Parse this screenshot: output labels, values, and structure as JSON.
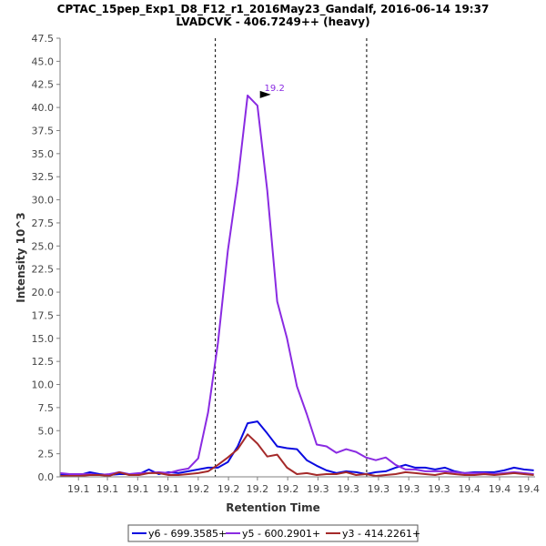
{
  "chart_data": {
    "type": "line",
    "title": "CPTAC_15pep_Exp1_D8_F12_r1_2016May23_Gandalf, 2016-06-14 19:37",
    "subtitle": "LVADCVK - 406.7249++ (heavy)",
    "xlabel": "Retention Time",
    "ylabel": "Intensity 10^3",
    "xlim": [
      19.066,
      19.427
    ],
    "ylim": [
      0,
      47.5
    ],
    "yticks": [
      0,
      2.5,
      5.0,
      7.5,
      10.0,
      12.5,
      15.0,
      17.5,
      20.0,
      22.5,
      25.0,
      27.5,
      30.0,
      32.5,
      35.0,
      37.5,
      40.0,
      42.5,
      45.0,
      47.5
    ],
    "xticks": [
      {
        "value": 19.08,
        "label": "19.1"
      },
      {
        "value": 19.102,
        "label": "19.1"
      },
      {
        "value": 19.125,
        "label": "19.1"
      },
      {
        "value": 19.148,
        "label": "19.1"
      },
      {
        "value": 19.171,
        "label": "19.2"
      },
      {
        "value": 19.194,
        "label": "19.2"
      },
      {
        "value": 19.216,
        "label": "19.2"
      },
      {
        "value": 19.239,
        "label": "19.2"
      },
      {
        "value": 19.262,
        "label": "19.3"
      },
      {
        "value": 19.285,
        "label": "19.3"
      },
      {
        "value": 19.308,
        "label": "19.3"
      },
      {
        "value": 19.331,
        "label": "19.3"
      },
      {
        "value": 19.354,
        "label": "19.3"
      },
      {
        "value": 19.377,
        "label": "19.4"
      },
      {
        "value": 19.4,
        "label": "19.4"
      },
      {
        "value": 19.422,
        "label": "19.4"
      }
    ],
    "boundaries": [
      19.184,
      19.299
    ],
    "peak_annotation": {
      "label": "19.2",
      "x": 19.229,
      "y": 41.3
    },
    "x": [
      19.066,
      19.0735,
      19.081,
      19.0885,
      19.096,
      19.1035,
      19.111,
      19.1185,
      19.126,
      19.1335,
      19.141,
      19.1485,
      19.156,
      19.1635,
      19.171,
      19.1785,
      19.186,
      19.1935,
      19.201,
      19.2085,
      19.216,
      19.2235,
      19.231,
      19.2385,
      19.246,
      19.2535,
      19.261,
      19.2685,
      19.276,
      19.2835,
      19.291,
      19.2985,
      19.306,
      19.3135,
      19.321,
      19.3285,
      19.336,
      19.3435,
      19.351,
      19.3585,
      19.366,
      19.3735,
      19.381,
      19.3885,
      19.396,
      19.4035,
      19.411,
      19.4185,
      19.426
    ],
    "series": [
      {
        "name": "y6 - 699.3585+",
        "color": "#0a0ae0",
        "values": [
          0.2,
          0.2,
          0.2,
          0.5,
          0.3,
          0.2,
          0.3,
          0.3,
          0.3,
          0.8,
          0.3,
          0.5,
          0.4,
          0.6,
          0.8,
          1.0,
          1.0,
          1.6,
          3.3,
          5.8,
          6.0,
          4.7,
          3.3,
          3.1,
          3.0,
          1.8,
          1.2,
          0.7,
          0.4,
          0.6,
          0.5,
          0.3,
          0.5,
          0.6,
          1.0,
          1.3,
          1.0,
          1.0,
          0.8,
          1.0,
          0.6,
          0.4,
          0.5,
          0.5,
          0.5,
          0.7,
          1.0,
          0.8,
          0.7
        ]
      },
      {
        "name": "y5 - 600.2901+",
        "color": "#8a2be2",
        "values": [
          0.4,
          0.3,
          0.3,
          0.3,
          0.2,
          0.3,
          0.5,
          0.3,
          0.4,
          0.4,
          0.5,
          0.4,
          0.7,
          0.9,
          2.0,
          7.0,
          14.5,
          24.5,
          32.0,
          41.3,
          40.2,
          31.0,
          19.0,
          15.0,
          9.8,
          6.8,
          3.5,
          3.3,
          2.6,
          3.0,
          2.7,
          2.1,
          1.8,
          2.1,
          1.3,
          0.8,
          0.8,
          0.6,
          0.6,
          0.6,
          0.5,
          0.4,
          0.4,
          0.4,
          0.3,
          0.4,
          0.5,
          0.4,
          0.3
        ]
      },
      {
        "name": "y3 - 414.2261+",
        "color": "#a52a2a",
        "values": [
          0.1,
          0.1,
          0.1,
          0.2,
          0.2,
          0.1,
          0.5,
          0.2,
          0.2,
          0.4,
          0.4,
          0.2,
          0.2,
          0.3,
          0.4,
          0.6,
          1.3,
          2.1,
          3.0,
          4.6,
          3.6,
          2.2,
          2.4,
          1.0,
          0.3,
          0.4,
          0.2,
          0.3,
          0.3,
          0.5,
          0.2,
          0.3,
          0.1,
          0.2,
          0.3,
          0.5,
          0.4,
          0.3,
          0.2,
          0.4,
          0.3,
          0.2,
          0.2,
          0.3,
          0.2,
          0.3,
          0.4,
          0.3,
          0.2
        ]
      }
    ]
  }
}
